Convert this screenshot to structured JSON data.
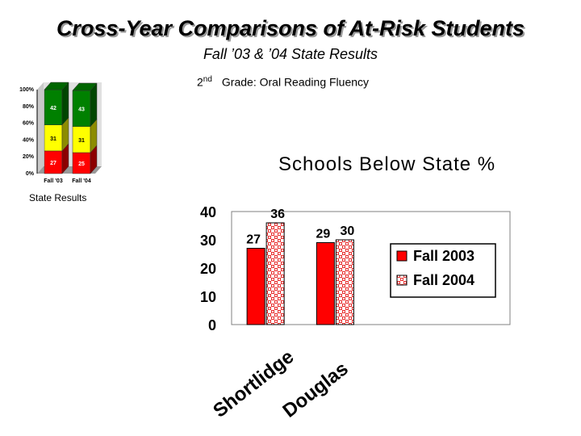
{
  "header": {
    "title": "Cross-Year Comparisons of At-Risk Students",
    "subtitle": "Fall ’03 & ’04 State Results",
    "grade_ordinal": "2",
    "grade_suffix": "nd",
    "grade_text": "Grade: Oral Reading Fluency"
  },
  "state_results_label": "State Results",
  "chart_data": [
    {
      "type": "bar",
      "stacked": true,
      "percent": true,
      "style": "3d",
      "categories": [
        "Fall '03",
        "Fall '04"
      ],
      "series": [
        {
          "values": [
            27,
            25
          ],
          "color": "#ff0000"
        },
        {
          "values": [
            31,
            31
          ],
          "color": "#ffff00"
        },
        {
          "values": [
            42,
            43
          ],
          "color": "#008000"
        }
      ],
      "yticks": [
        "0%",
        "20%",
        "40%",
        "60%",
        "80%",
        "100%"
      ],
      "ylim": [
        0,
        100
      ],
      "grid": false
    },
    {
      "type": "bar",
      "title": "Schools Below State %",
      "categories": [
        "Shortlidge",
        "Douglas"
      ],
      "series": [
        {
          "name": "Fall 2003",
          "values": [
            27,
            29
          ],
          "color": "#ff0000"
        },
        {
          "name": "Fall 2004",
          "values": [
            36,
            30
          ],
          "color": "#ff0000",
          "pattern": "checker"
        }
      ],
      "ylim": [
        0,
        40
      ],
      "yticks": [
        "0",
        "10",
        "20",
        "30",
        "40"
      ],
      "legend": "right",
      "grid": false
    }
  ]
}
